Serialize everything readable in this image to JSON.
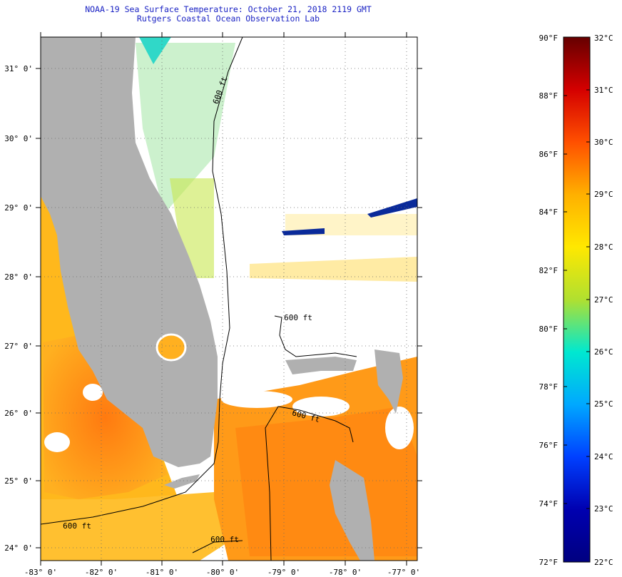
{
  "header": {
    "title_line1": "NOAA-19 Sea Surface Temperature:  October 21, 2018 2119 GMT",
    "title_line2": "Rutgers Coastal Ocean Observation Lab"
  },
  "map": {
    "lat_labels": [
      "31° 0'",
      "30° 0'",
      "29° 0'",
      "28° 0'",
      "27° 0'",
      "26° 0'",
      "25° 0'",
      "24° 0'"
    ],
    "lon_labels": [
      "-83° 0'",
      "-82° 0'",
      "-81° 0'",
      "-80° 0'",
      "-79° 0'",
      "-78° 0'",
      "-77° 0'"
    ],
    "contour_labels": [
      "600 ft",
      "600 ft",
      "600 ft",
      "600 ft",
      "600 ft"
    ],
    "land_color": "#b0b0b0",
    "cloud_color": "#ffffff"
  },
  "colorbar": {
    "fahrenheit_labels": [
      "90°F",
      "88°F",
      "86°F",
      "84°F",
      "82°F",
      "80°F",
      "78°F",
      "76°F",
      "74°F",
      "72°F"
    ],
    "celsius_labels": [
      "32°C",
      "31°C",
      "30°C",
      "29°C",
      "28°C",
      "27°C",
      "26°C",
      "25°C",
      "24°C",
      "23°C",
      "22°C"
    ],
    "colors": [
      "#660000",
      "#d40000",
      "#ff5000",
      "#ffb000",
      "#ffe800",
      "#b0e030",
      "#00e8d0",
      "#00a8ff",
      "#0040ff",
      "#0000b0",
      "#000080"
    ]
  }
}
